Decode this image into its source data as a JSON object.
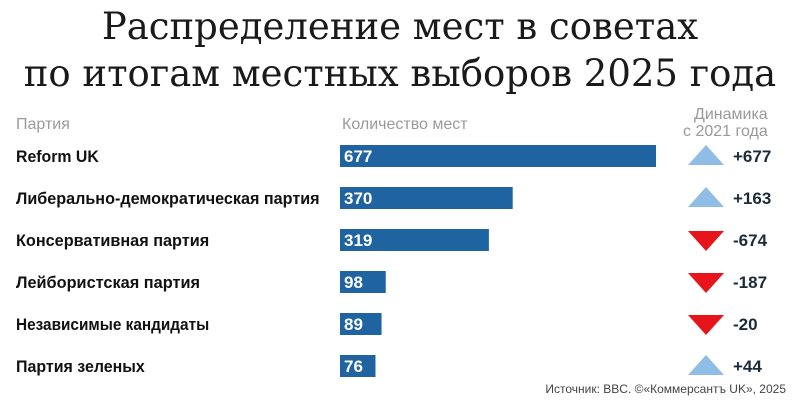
{
  "title": {
    "line1": "Распределение мест в советах",
    "line2": "по итогам местных выборов 2025 года"
  },
  "headers": {
    "party": "Партия",
    "seats": "Количество мест",
    "change_line1": "Динамика",
    "change_line2": "с 2021 года"
  },
  "source": "Источник: BBC. ©«Коммерсантъ UK», 2025",
  "colors": {
    "bar": "#1f63a0",
    "up": "#8fbde6",
    "down": "#e8141b",
    "label": "#111111",
    "change": "#1c2b3a"
  },
  "chart_data": {
    "type": "bar",
    "orientation": "horizontal",
    "title": "Распределение мест в советах по итогам местных выборов 2025 года",
    "categories": [
      "Reform UK",
      "Либерально-демократическая партия",
      "Консервативная партия",
      "Лейбористская партия",
      "Независимые кандидаты",
      "Партия зеленых"
    ],
    "values": [
      677,
      370,
      319,
      98,
      89,
      76
    ],
    "change_labels": [
      "+677",
      "+163",
      "-674",
      "-187",
      "-20",
      "+44"
    ],
    "change_direction": [
      "up",
      "up",
      "down",
      "down",
      "down",
      "up"
    ],
    "xlim": [
      0,
      677
    ],
    "grid": false,
    "legend": "none"
  }
}
